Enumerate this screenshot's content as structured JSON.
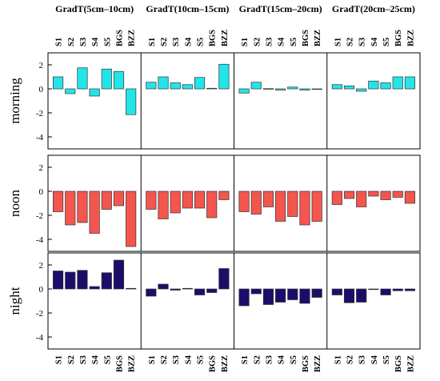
{
  "chart_data": {
    "type": "bar",
    "categories": [
      "S1",
      "S2",
      "S3",
      "S4",
      "S5",
      "BGS",
      "BZZ"
    ],
    "column_titles": [
      "GradT(5cm–10cm)",
      "GradT(10cm–15cm)",
      "GradT(15cm–20cm)",
      "GradT(20cm–25cm)"
    ],
    "row_labels": [
      "morning",
      "noon",
      "night"
    ],
    "yticks": [
      2,
      0,
      -2,
      -4
    ],
    "ylim": [
      -5,
      3
    ],
    "grid": false,
    "colors": {
      "morning": "#22e5ea",
      "noon": "#f4564e",
      "night": "#1e0c6b",
      "edge": "#333333"
    },
    "panels": {
      "morning": [
        [
          1.0,
          -0.4,
          1.75,
          -0.6,
          1.65,
          1.45,
          -2.15
        ],
        [
          0.55,
          1.0,
          0.5,
          0.35,
          0.95,
          0.05,
          2.05
        ],
        [
          -0.35,
          0.55,
          0.02,
          -0.1,
          0.15,
          -0.1,
          -0.05
        ],
        [
          0.35,
          0.25,
          -0.2,
          0.65,
          0.5,
          1.0,
          1.0
        ]
      ],
      "noon": [
        [
          -1.7,
          -2.8,
          -2.6,
          -3.5,
          -1.5,
          -1.2,
          -4.6
        ],
        [
          -1.5,
          -2.3,
          -1.8,
          -1.4,
          -1.4,
          -2.2,
          -0.7
        ],
        [
          -1.7,
          -1.9,
          -1.3,
          -2.5,
          -2.1,
          -2.8,
          -2.5
        ],
        [
          -1.1,
          -0.6,
          -1.3,
          -0.4,
          -0.7,
          -0.5,
          -1.0
        ]
      ],
      "night": [
        [
          1.5,
          1.4,
          1.55,
          0.2,
          1.35,
          2.4,
          0.05
        ],
        [
          -0.6,
          0.4,
          -0.1,
          0.05,
          -0.5,
          -0.3,
          1.7
        ],
        [
          -1.4,
          -0.4,
          -1.3,
          -1.1,
          -0.9,
          -1.2,
          -0.7
        ],
        [
          -0.5,
          -1.15,
          -1.1,
          -0.05,
          -0.5,
          -0.15,
          -0.15
        ]
      ]
    }
  }
}
